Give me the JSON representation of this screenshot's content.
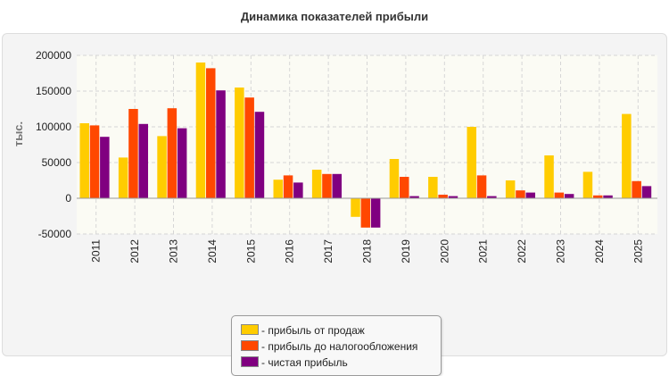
{
  "title": "Динамика показателей прибыли",
  "chart_data": {
    "type": "bar",
    "title": "Динамика показателей прибыли",
    "ylabel": "тыс.",
    "xlabel": "",
    "ylim": [
      -50000,
      200000
    ],
    "yticks": [
      200000,
      150000,
      100000,
      50000,
      0,
      -50000
    ],
    "grid": true,
    "legend_position": "bottom-center",
    "categories": [
      "2011",
      "2012",
      "2013",
      "2014",
      "2015",
      "2016",
      "2017",
      "2018",
      "2019",
      "2020",
      "2021",
      "2022",
      "2023",
      "2024",
      "2025"
    ],
    "series": [
      {
        "name": "прибыль от продаж",
        "color": "#ffcc00",
        "values": [
          105000,
          57000,
          87000,
          190000,
          155000,
          26000,
          40000,
          -26000,
          55000,
          30000,
          100000,
          25000,
          60000,
          37000,
          118000
        ]
      },
      {
        "name": "прибыль до налогообложения",
        "color": "#ff4800",
        "values": [
          102000,
          125000,
          126000,
          182000,
          141000,
          32000,
          34000,
          -41000,
          30000,
          5000,
          32000,
          11000,
          8000,
          4000,
          24000
        ]
      },
      {
        "name": "чистая прибыль",
        "color": "#800080",
        "values": [
          86000,
          104000,
          98000,
          151000,
          121000,
          22000,
          34000,
          -41000,
          3000,
          3000,
          3000,
          8000,
          6000,
          4000,
          17000
        ]
      }
    ]
  },
  "legend": {
    "items": [
      {
        "label": "- прибыль от продаж",
        "color": "#ffcc00"
      },
      {
        "label": "- прибыль до налогообложения",
        "color": "#ff4800"
      },
      {
        "label": "- чистая прибыль",
        "color": "#800080"
      }
    ]
  }
}
